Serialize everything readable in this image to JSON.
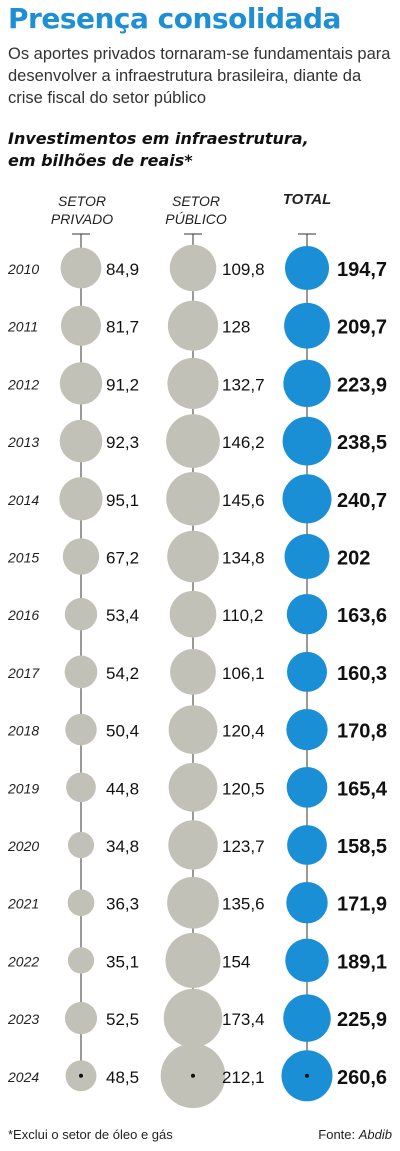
{
  "header": {
    "title": "Presença consolidada",
    "subtitle": "Os aportes privados tornaram-se fundamentais para desenvolver a infraestrutura brasileira, diante da crise fiscal do setor público"
  },
  "chart_heading": {
    "line1": "Investimentos em infraestrutura,",
    "line2": "em bilhões de reais*"
  },
  "columns": {
    "private": {
      "line1": "SETOR",
      "line2": "PRIVADO"
    },
    "public": {
      "line1": "SETOR",
      "line2": "PÚBLICO"
    },
    "total": "TOTAL"
  },
  "colors": {
    "sector_bubble": "#c2c1b7",
    "total_bubble": "#1a8fd6",
    "title": "#1e8fd3"
  },
  "chart_data": {
    "type": "bubble-table",
    "categories": [
      "2010",
      "2011",
      "2012",
      "2013",
      "2014",
      "2015",
      "2016",
      "2017",
      "2018",
      "2019",
      "2020",
      "2021",
      "2022",
      "2023",
      "2024"
    ],
    "series": [
      {
        "name": "SETOR PRIVADO",
        "values": [
          84.9,
          81.7,
          91.2,
          92.3,
          95.1,
          67.2,
          53.4,
          54.2,
          50.4,
          44.8,
          34.8,
          36.3,
          35.1,
          52.5,
          48.5
        ]
      },
      {
        "name": "SETOR PÚBLICO",
        "values": [
          109.8,
          128,
          132.7,
          146.2,
          145.6,
          134.8,
          110.2,
          106.1,
          120.4,
          120.5,
          123.7,
          135.6,
          154,
          173.4,
          212.1
        ]
      },
      {
        "name": "TOTAL",
        "values": [
          194.7,
          209.7,
          223.9,
          238.5,
          240.7,
          202,
          163.6,
          160.3,
          170.8,
          165.4,
          158.5,
          171.9,
          189.1,
          225.9,
          260.6
        ]
      }
    ],
    "labels": {
      "private": [
        "84,9",
        "81,7",
        "91,2",
        "92,3",
        "95,1",
        "67,2",
        "53,4",
        "54,2",
        "50,4",
        "44,8",
        "34,8",
        "36,3",
        "35,1",
        "52,5",
        "48,5"
      ],
      "public": [
        "109,8",
        "128",
        "132,7",
        "146,2",
        "145,6",
        "134,8",
        "110,2",
        "106,1",
        "120,4",
        "120,5",
        "123,7",
        "135,6",
        "154",
        "173,4",
        "212,1"
      ],
      "total": [
        "194,7",
        "209,7",
        "223,9",
        "238,5",
        "240,7",
        "202",
        "163,6",
        "160,3",
        "170,8",
        "165,4",
        "158,5",
        "171,9",
        "189,1",
        "225,9",
        "260,6"
      ]
    }
  },
  "footer": {
    "footnote": "*Exclui o setor de óleo e gás",
    "source_prefix": "Fonte: ",
    "source_name": "Abdib"
  }
}
